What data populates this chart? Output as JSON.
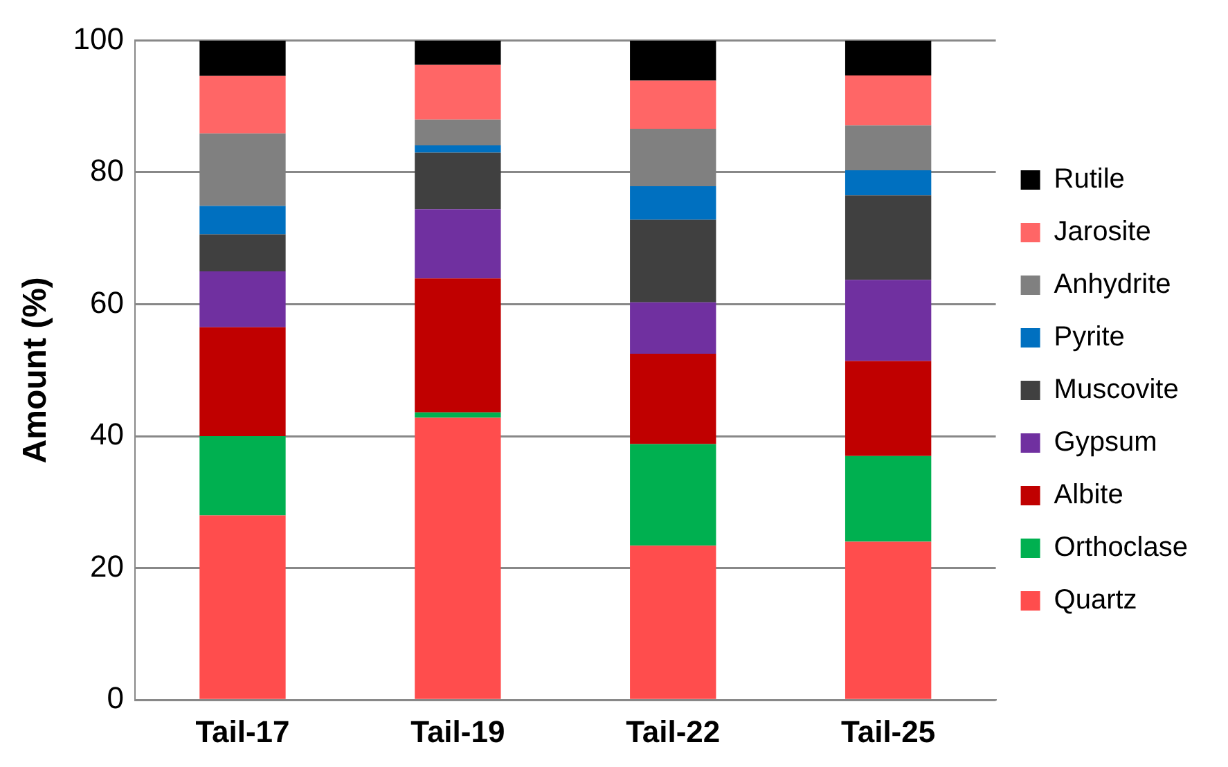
{
  "chart_data": {
    "type": "bar",
    "stacked": true,
    "ylabel": "Amount (%)",
    "categories": [
      "Tail-17",
      "Tail-19",
      "Tail-22",
      "Tail-25"
    ],
    "ylim": [
      0,
      100
    ],
    "yticks": [
      0,
      20,
      40,
      60,
      80,
      100
    ],
    "grid": "y",
    "legend": "right",
    "series": [
      {
        "name": "Quartz",
        "color": "#ff4d4d",
        "values": [
          28,
          42.8,
          23.4,
          24
        ]
      },
      {
        "name": "Orthoclase",
        "color": "#00b050",
        "values": [
          12,
          0.8,
          15.4,
          13
        ]
      },
      {
        "name": "Albite",
        "color": "#c00000",
        "values": [
          16.5,
          20.3,
          13.7,
          14.4
        ]
      },
      {
        "name": "Gypsum",
        "color": "#7030a0",
        "values": [
          8.5,
          10.5,
          7.8,
          12.3
        ]
      },
      {
        "name": "Muscovite",
        "color": "#404040",
        "values": [
          5.6,
          8.6,
          12.5,
          12.8
        ]
      },
      {
        "name": "Pyrite",
        "color": "#0070c0",
        "values": [
          4.3,
          1.1,
          5.1,
          3.8
        ]
      },
      {
        "name": "Anhydrite",
        "color": "#808080",
        "values": [
          11,
          3.9,
          8.7,
          6.8
        ]
      },
      {
        "name": "Jarosite",
        "color": "#ff6666",
        "values": [
          8.7,
          8.3,
          7.3,
          7.6
        ]
      },
      {
        "name": "Rutile",
        "color": "#000000",
        "values": [
          5.4,
          3.7,
          6.1,
          5.3
        ]
      }
    ]
  }
}
